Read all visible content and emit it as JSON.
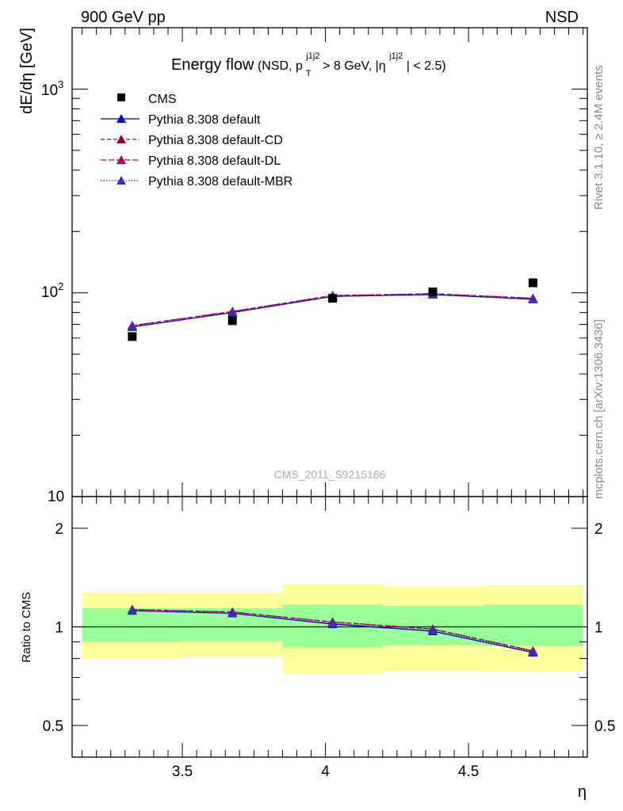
{
  "header": {
    "left": "900 GeV pp",
    "right": "NSD"
  },
  "title": {
    "main": "Energy flow",
    "details": [
      "(NSD, p",
      "j1j2",
      "T",
      " > 8 GeV, |η",
      "j1j2",
      "| < 2.5)"
    ]
  },
  "side_labels": {
    "rivet": "Rivet 3.1.10, ≥ 2.4M events",
    "mcplots": "mcplots.cern.ch [arXiv:1306.3436]"
  },
  "watermark": "CMS_2011_S9215166",
  "colors": {
    "data": "#000000",
    "default": "#0000cc",
    "cd": "#990033",
    "dl": "#aa0066",
    "mbr": "#3333aa",
    "band_outer": "#ffff99",
    "band_inner": "#99ff99"
  },
  "chart_data": [
    {
      "type": "scatter",
      "panel": "main",
      "ylabel": "dE/dη [GeV]",
      "yscale": "log",
      "ylim": [
        10,
        2000
      ],
      "xlim": [
        3.115,
        4.915
      ],
      "ytick_labels": [
        "10",
        "10",
        "10"
      ],
      "ytick_exponents": [
        "",
        "2",
        "3"
      ],
      "legend_position": "top-left",
      "x": [
        3.325,
        3.675,
        4.025,
        4.375,
        4.725
      ],
      "x_edges": [
        3.15,
        3.5,
        3.85,
        4.2,
        4.55,
        4.9
      ],
      "series": [
        {
          "name": "CMS",
          "style": "marker-square",
          "values": [
            61,
            73,
            94,
            101,
            112
          ]
        },
        {
          "name": "Pythia 8.308 default",
          "style": "solid",
          "values": [
            68,
            80,
            96,
            98,
            93
          ]
        },
        {
          "name": "Pythia 8.308 default-CD",
          "style": "dashed",
          "values": [
            69,
            81,
            97,
            99,
            94
          ]
        },
        {
          "name": "Pythia 8.308 default-DL",
          "style": "dashed",
          "values": [
            69,
            81,
            97,
            99,
            94
          ]
        },
        {
          "name": "Pythia 8.308 default-MBR",
          "style": "dotted",
          "values": [
            68,
            80,
            96,
            98,
            93
          ]
        }
      ]
    },
    {
      "type": "line",
      "panel": "ratio",
      "ylabel": "Ratio to CMS",
      "xlabel": "η",
      "yscale": "log",
      "ylim": [
        0.4,
        2.5
      ],
      "xlim": [
        3.115,
        4.915
      ],
      "xticks": [
        3.5,
        4,
        4.5
      ],
      "xtick_labels": [
        "3.5",
        "4",
        "4.5"
      ],
      "yticks": [
        0.5,
        1,
        2
      ],
      "ytick_labels": [
        "0.5",
        "1",
        "2"
      ],
      "x": [
        3.325,
        3.675,
        4.025,
        4.375,
        4.725
      ],
      "x_edges": [
        3.15,
        3.5,
        3.85,
        4.2,
        4.55,
        4.9
      ],
      "band_outer": [
        [
          0.8,
          1.27
        ],
        [
          0.81,
          1.27
        ],
        [
          0.72,
          1.35
        ],
        [
          0.735,
          1.33
        ],
        [
          0.73,
          1.34
        ]
      ],
      "band_inner": [
        [
          0.9,
          1.14
        ],
        [
          0.905,
          1.14
        ],
        [
          0.865,
          1.17
        ],
        [
          0.88,
          1.16
        ],
        [
          0.875,
          1.17
        ]
      ],
      "series": [
        {
          "name": "Pythia 8.308 default",
          "values": [
            1.12,
            1.1,
            1.02,
            0.97,
            0.835
          ]
        },
        {
          "name": "Pythia 8.308 default-CD",
          "values": [
            1.13,
            1.11,
            1.035,
            0.985,
            0.845
          ]
        },
        {
          "name": "Pythia 8.308 default-DL",
          "values": [
            1.13,
            1.11,
            1.035,
            0.985,
            0.845
          ]
        },
        {
          "name": "Pythia 8.308 default-MBR",
          "values": [
            1.12,
            1.1,
            1.025,
            0.975,
            0.84
          ]
        }
      ]
    }
  ]
}
